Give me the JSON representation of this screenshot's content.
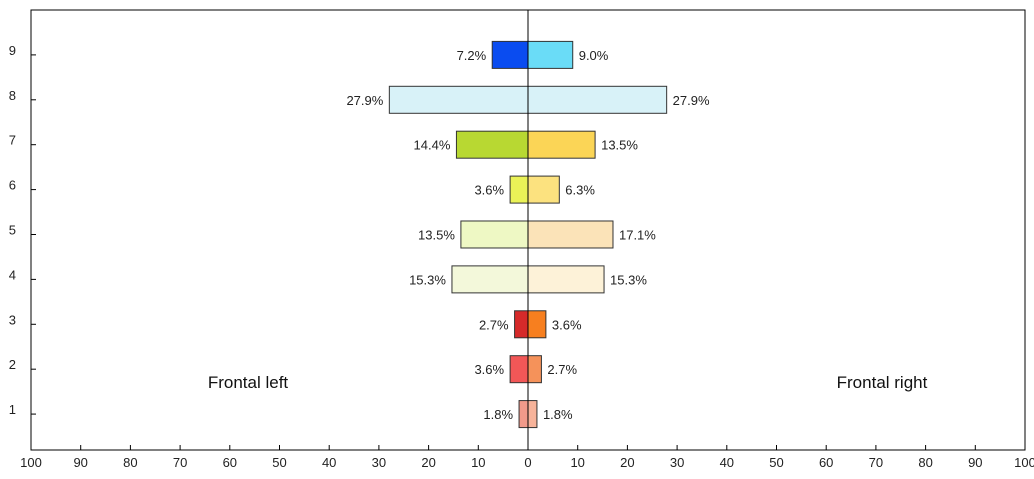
{
  "chart_data": {
    "type": "bar",
    "orientation": "horizontal-diverging",
    "categories": [
      "1",
      "2",
      "3",
      "4",
      "5",
      "6",
      "7",
      "8",
      "9"
    ],
    "series": [
      {
        "name": "Frontal left",
        "values": [
          1.8,
          3.6,
          2.7,
          15.3,
          13.5,
          3.6,
          14.4,
          27.9,
          7.2
        ],
        "labels": [
          "1.8%",
          "3.6%",
          "2.7%",
          "15.3%",
          "13.5%",
          "3.6%",
          "14.4%",
          "27.9%",
          "7.2%"
        ],
        "colors": [
          "#f19a8a",
          "#f25757",
          "#d62a2a",
          "#f3f8da",
          "#eef8c4",
          "#eaf257",
          "#b8d832",
          "#d8f2f8",
          "#0a4cf0"
        ]
      },
      {
        "name": "Frontal right",
        "values": [
          1.8,
          2.7,
          3.6,
          15.3,
          17.1,
          6.3,
          13.5,
          27.9,
          9.0
        ],
        "labels": [
          "1.8%",
          "2.7%",
          "3.6%",
          "15.3%",
          "17.1%",
          "6.3%",
          "13.5%",
          "27.9%",
          "9.0%"
        ],
        "colors": [
          "#f7b39a",
          "#f5925a",
          "#f77f1f",
          "#fdf2d8",
          "#fbe3b8",
          "#fce27f",
          "#fbd556",
          "#d8f2f8",
          "#6adcf7"
        ]
      }
    ],
    "xaxis": {
      "ticks": [
        -100,
        -90,
        -80,
        -70,
        -60,
        -50,
        -40,
        -30,
        -20,
        -10,
        0,
        10,
        20,
        30,
        40,
        50,
        60,
        70,
        80,
        90,
        100
      ],
      "tick_labels": [
        "100",
        "90",
        "80",
        "70",
        "60",
        "50",
        "40",
        "30",
        "20",
        "10",
        "0",
        "10",
        "20",
        "30",
        "40",
        "50",
        "60",
        "70",
        "80",
        "90",
        "100"
      ],
      "range": [
        -100,
        100
      ]
    },
    "yaxis": {
      "range": [
        0.2,
        10
      ],
      "tick_labels": [
        "1",
        "2",
        "3",
        "4",
        "5",
        "6",
        "7",
        "8",
        "9"
      ]
    },
    "annotations": [
      "Frontal left",
      "Frontal right"
    ],
    "grid": false
  }
}
